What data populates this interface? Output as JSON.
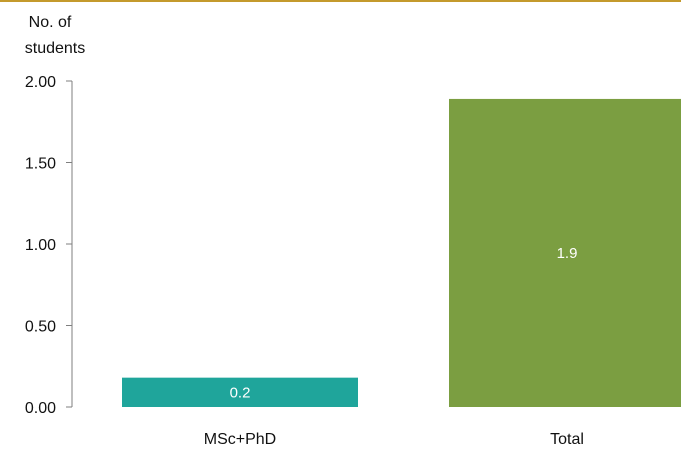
{
  "theme": {
    "accent_rule_color": "#c49a2c",
    "axis_color": "#7f7f7f",
    "text_color": "#111111",
    "data_label_color": "#ffffff"
  },
  "chart_data": {
    "type": "bar",
    "ylabel_lines": [
      "No. of",
      "students"
    ],
    "xlabel": "",
    "ylim": [
      0,
      2.0
    ],
    "yticks": [
      0,
      0.5,
      1.0,
      1.5,
      2.0
    ],
    "ytick_labels": [
      "0.00",
      "0.50",
      "1.00",
      "1.50",
      "2.00"
    ],
    "grid": false,
    "legend": "none",
    "categories": [
      "MSc+PhD",
      "Total"
    ],
    "values": [
      0.18,
      1.89
    ],
    "data_labels": [
      "0.2",
      "1.9"
    ],
    "bar_colors": [
      "#1fa59b",
      "#7b9e41"
    ]
  }
}
